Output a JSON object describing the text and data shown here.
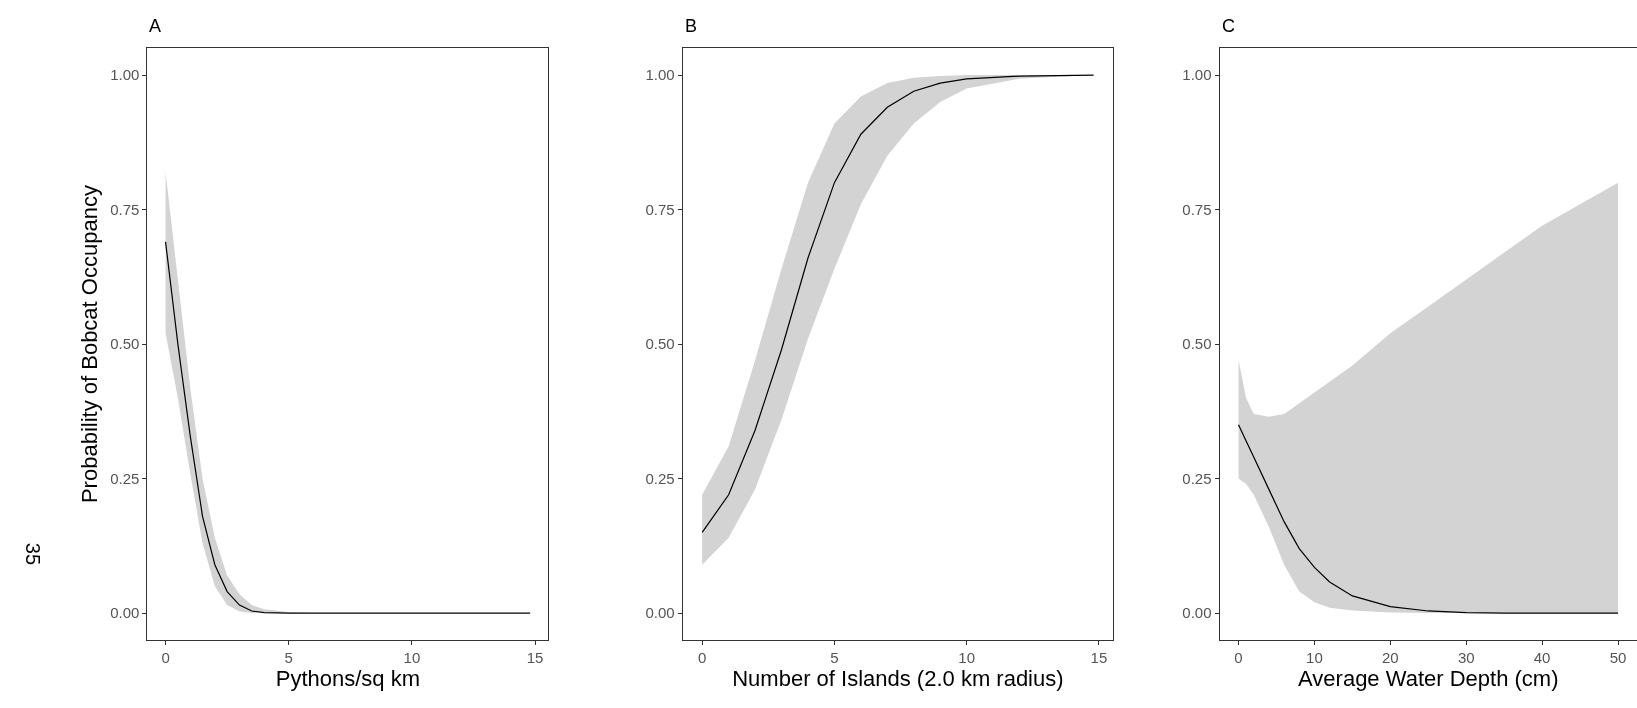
{
  "chart_data": [
    {
      "type": "line",
      "title": "A",
      "xlabel": "Pythons/sq km",
      "ylabel": "Probability of Bobcat Occupancy",
      "xlim": [
        -0.74,
        15.54
      ],
      "ylim": [
        -0.05,
        1.05
      ],
      "xticks": [
        0,
        5,
        10,
        15
      ],
      "yticks": [
        {
          "value": 0,
          "label": "0.00"
        },
        {
          "value": 0.25,
          "label": "0.25"
        },
        {
          "value": 0.5,
          "label": "0.50"
        },
        {
          "value": 0.75,
          "label": "0.75"
        },
        {
          "value": 1,
          "label": "1.00"
        }
      ],
      "annotations": [
        "35"
      ],
      "series": [
        {
          "color": "#000000",
          "x": [
            0,
            0.5,
            1,
            1.5,
            2,
            2.5,
            3,
            3.5,
            4,
            5,
            6,
            10,
            14.8
          ],
          "values": [
            0.69,
            0.5,
            0.33,
            0.18,
            0.09,
            0.04,
            0.015,
            0.004,
            0.001,
            0,
            0,
            0,
            0
          ],
          "lower": [
            0.52,
            0.4,
            0.26,
            0.13,
            0.05,
            0.015,
            0.003,
            0,
            0,
            0,
            0,
            0,
            0
          ],
          "upper": [
            0.82,
            0.62,
            0.42,
            0.25,
            0.14,
            0.07,
            0.035,
            0.015,
            0.007,
            0.002,
            0,
            0,
            0
          ]
        }
      ]
    },
    {
      "type": "line",
      "title": "B",
      "xlabel": "Number of Islands (2.0 km radius)",
      "xlim": [
        -0.74,
        15.54
      ],
      "ylim": [
        -0.05,
        1.05
      ],
      "xticks": [
        0,
        5,
        10,
        15
      ],
      "yticks": [
        {
          "value": 0,
          "label": "0.00"
        },
        {
          "value": 0.25,
          "label": "0.25"
        },
        {
          "value": 0.5,
          "label": "0.50"
        },
        {
          "value": 0.75,
          "label": "0.75"
        },
        {
          "value": 1,
          "label": "1.00"
        }
      ],
      "series": [
        {
          "color": "#000000",
          "x": [
            0,
            1,
            2,
            3,
            4,
            5,
            6,
            7,
            8,
            9,
            10,
            12,
            14.8
          ],
          "values": [
            0.15,
            0.22,
            0.34,
            0.49,
            0.66,
            0.8,
            0.89,
            0.94,
            0.97,
            0.985,
            0.993,
            0.998,
            1.0
          ],
          "lower": [
            0.09,
            0.14,
            0.23,
            0.36,
            0.51,
            0.64,
            0.76,
            0.85,
            0.91,
            0.95,
            0.975,
            0.993,
            1.0
          ],
          "upper": [
            0.22,
            0.31,
            0.47,
            0.64,
            0.8,
            0.91,
            0.96,
            0.985,
            0.995,
            0.998,
            1.0,
            1.0,
            1.0
          ]
        }
      ]
    },
    {
      "type": "line",
      "title": "C",
      "xlabel": "Average Water Depth (cm)",
      "xlim": [
        -2.5,
        52.5
      ],
      "ylim": [
        -0.05,
        1.05
      ],
      "xticks": [
        0,
        10,
        20,
        30,
        40,
        50
      ],
      "yticks": [
        {
          "value": 0,
          "label": "0.00"
        },
        {
          "value": 0.25,
          "label": "0.25"
        },
        {
          "value": 0.5,
          "label": "0.50"
        },
        {
          "value": 0.75,
          "label": "0.75"
        },
        {
          "value": 1,
          "label": "1.00"
        }
      ],
      "series": [
        {
          "color": "#000000",
          "x": [
            0,
            1,
            2,
            4,
            6,
            8,
            10,
            12,
            15,
            20,
            25,
            30,
            35,
            40,
            45,
            50
          ],
          "values": [
            0.35,
            0.32,
            0.29,
            0.23,
            0.17,
            0.12,
            0.085,
            0.058,
            0.032,
            0.012,
            0.004,
            0.001,
            0,
            0,
            0,
            0
          ],
          "lower": [
            0.25,
            0.24,
            0.22,
            0.16,
            0.09,
            0.04,
            0.02,
            0.01,
            0.005,
            0.001,
            0,
            0,
            0,
            0,
            0,
            0
          ],
          "upper": [
            0.47,
            0.4,
            0.37,
            0.365,
            0.37,
            0.39,
            0.41,
            0.43,
            0.46,
            0.52,
            0.57,
            0.62,
            0.67,
            0.72,
            0.76,
            0.8
          ]
        }
      ]
    }
  ]
}
